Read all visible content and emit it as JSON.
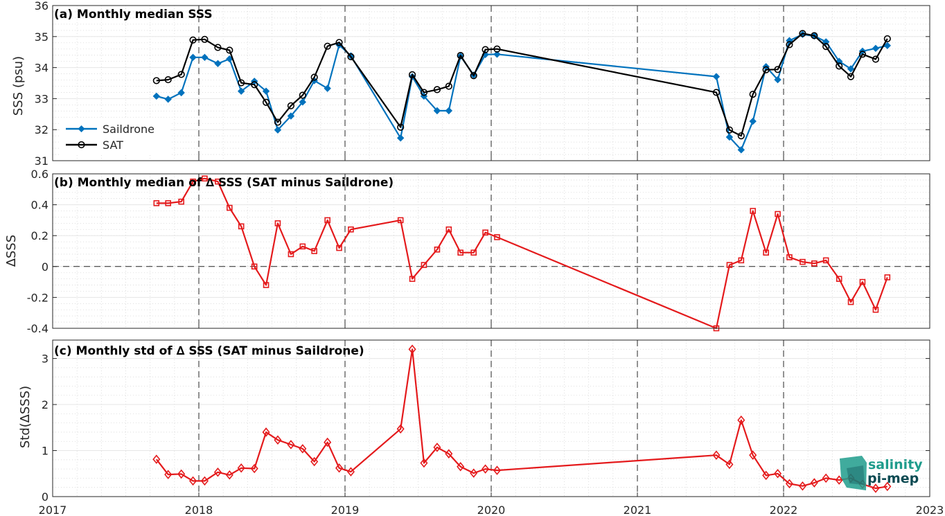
{
  "colors": {
    "saildrone": "#0072BD",
    "sat": "#000000",
    "delta": "#E41A1C",
    "logo_light": "#1f9c8c",
    "logo_dark": "#0c4a52"
  },
  "xaxis": {
    "ticks": [
      2017,
      2018,
      2019,
      2020,
      2021,
      2022,
      2023
    ],
    "labels": [
      "2017",
      "2018",
      "2019",
      "2020",
      "2021",
      "2022",
      "2023"
    ],
    "range": [
      2017,
      2023
    ]
  },
  "logo": {
    "line1": "salinity",
    "line2": "pi-mep"
  },
  "chart_data": [
    {
      "type": "line",
      "title": "(a) Monthly median SSS",
      "ylabel": "SSS (psu)",
      "ylim": [
        31,
        36
      ],
      "yticks": [
        31,
        32,
        33,
        34,
        35,
        36
      ],
      "ytick_labels": [
        "31",
        "32",
        "33",
        "34",
        "35",
        "36"
      ],
      "grid": true,
      "legend_position": "lower-left",
      "series": [
        {
          "name": "Saildrone",
          "marker": "diamond-filled",
          "points": [
            [
              2017.71,
              33.08
            ],
            [
              2017.79,
              32.98
            ],
            [
              2017.88,
              33.19
            ],
            [
              2017.96,
              34.33
            ],
            [
              2018.04,
              34.33
            ],
            [
              2018.13,
              34.13
            ],
            [
              2018.21,
              34.28
            ],
            [
              2018.29,
              33.24
            ],
            [
              2018.38,
              33.56
            ],
            [
              2018.46,
              33.24
            ],
            [
              2018.54,
              31.99
            ],
            [
              2018.63,
              32.44
            ],
            [
              2018.71,
              32.89
            ],
            [
              2018.79,
              33.58
            ],
            [
              2018.88,
              33.33
            ],
            [
              2018.96,
              34.73
            ],
            [
              2019.04,
              34.38
            ],
            [
              2019.38,
              31.73
            ],
            [
              2019.46,
              33.71
            ],
            [
              2019.54,
              33.08
            ],
            [
              2019.63,
              32.61
            ],
            [
              2019.71,
              32.61
            ],
            [
              2019.79,
              34.37
            ],
            [
              2019.88,
              33.76
            ],
            [
              2019.96,
              34.42
            ],
            [
              2020.04,
              34.43
            ],
            [
              2021.54,
              33.71
            ],
            [
              2021.63,
              31.76
            ],
            [
              2021.71,
              31.35
            ],
            [
              2021.79,
              32.27
            ],
            [
              2021.88,
              34.03
            ],
            [
              2021.96,
              33.61
            ],
            [
              2022.04,
              34.87
            ],
            [
              2022.13,
              35.07
            ],
            [
              2022.21,
              35.02
            ],
            [
              2022.29,
              34.83
            ],
            [
              2022.38,
              34.2
            ],
            [
              2022.46,
              33.96
            ],
            [
              2022.54,
              34.53
            ],
            [
              2022.63,
              34.62
            ],
            [
              2022.71,
              34.71
            ]
          ]
        },
        {
          "name": "SAT",
          "marker": "circle-open",
          "points": [
            [
              2017.71,
              33.58
            ],
            [
              2017.79,
              33.61
            ],
            [
              2017.88,
              33.78
            ],
            [
              2017.96,
              34.89
            ],
            [
              2018.04,
              34.91
            ],
            [
              2018.13,
              34.65
            ],
            [
              2018.21,
              34.56
            ],
            [
              2018.29,
              33.51
            ],
            [
              2018.38,
              33.45
            ],
            [
              2018.46,
              32.88
            ],
            [
              2018.54,
              32.24
            ],
            [
              2018.63,
              32.77
            ],
            [
              2018.71,
              33.11
            ],
            [
              2018.79,
              33.69
            ],
            [
              2018.88,
              34.69
            ],
            [
              2018.96,
              34.81
            ],
            [
              2019.04,
              34.35
            ],
            [
              2019.38,
              32.08
            ],
            [
              2019.46,
              33.77
            ],
            [
              2019.54,
              33.2
            ],
            [
              2019.63,
              33.29
            ],
            [
              2019.71,
              33.4
            ],
            [
              2019.79,
              34.39
            ],
            [
              2019.88,
              33.74
            ],
            [
              2019.96,
              34.58
            ],
            [
              2020.04,
              34.6
            ],
            [
              2021.54,
              33.2
            ],
            [
              2021.63,
              31.99
            ],
            [
              2021.71,
              31.8
            ],
            [
              2021.79,
              33.14
            ],
            [
              2021.88,
              33.93
            ],
            [
              2021.96,
              33.94
            ],
            [
              2022.04,
              34.74
            ],
            [
              2022.13,
              35.1
            ],
            [
              2022.21,
              35.03
            ],
            [
              2022.29,
              34.68
            ],
            [
              2022.38,
              34.05
            ],
            [
              2022.46,
              33.71
            ],
            [
              2022.54,
              34.43
            ],
            [
              2022.63,
              34.27
            ],
            [
              2022.71,
              34.93
            ]
          ]
        }
      ]
    },
    {
      "type": "line",
      "title": "(b) Monthly median of ∆ SSS (SAT minus Saildrone)",
      "ylabel": "∆SSS",
      "ylim": [
        -0.4,
        0.6
      ],
      "yticks": [
        -0.4,
        -0.2,
        0,
        0.2,
        0.4,
        0.6
      ],
      "ytick_labels": [
        "-0.4",
        "-0.2",
        "0",
        "0.2",
        "0.4",
        "0.6"
      ],
      "grid": true,
      "zero_line": true,
      "series": [
        {
          "name": "",
          "marker": "square-open",
          "points": [
            [
              2017.71,
              0.41
            ],
            [
              2017.79,
              0.41
            ],
            [
              2017.88,
              0.42
            ],
            [
              2017.96,
              0.55
            ],
            [
              2018.04,
              0.57
            ],
            [
              2018.13,
              0.55
            ],
            [
              2018.21,
              0.38
            ],
            [
              2018.29,
              0.26
            ],
            [
              2018.38,
              0.0
            ],
            [
              2018.46,
              -0.12
            ],
            [
              2018.54,
              0.28
            ],
            [
              2018.63,
              0.08
            ],
            [
              2018.71,
              0.13
            ],
            [
              2018.79,
              0.1
            ],
            [
              2018.88,
              0.3
            ],
            [
              2018.96,
              0.12
            ],
            [
              2019.04,
              0.24
            ],
            [
              2019.38,
              0.3
            ],
            [
              2019.46,
              -0.08
            ],
            [
              2019.54,
              0.01
            ],
            [
              2019.63,
              0.11
            ],
            [
              2019.71,
              0.24
            ],
            [
              2019.79,
              0.09
            ],
            [
              2019.88,
              0.09
            ],
            [
              2019.96,
              0.22
            ],
            [
              2020.04,
              0.19
            ],
            [
              2021.54,
              -0.4
            ],
            [
              2021.63,
              0.01
            ],
            [
              2021.71,
              0.04
            ],
            [
              2021.79,
              0.36
            ],
            [
              2021.88,
              0.09
            ],
            [
              2021.96,
              0.34
            ],
            [
              2022.04,
              0.06
            ],
            [
              2022.13,
              0.03
            ],
            [
              2022.21,
              0.02
            ],
            [
              2022.29,
              0.04
            ],
            [
              2022.38,
              -0.08
            ],
            [
              2022.46,
              -0.23
            ],
            [
              2022.54,
              -0.1
            ],
            [
              2022.63,
              -0.28
            ],
            [
              2022.71,
              -0.07
            ]
          ]
        }
      ]
    },
    {
      "type": "line",
      "title": "(c) Monthly std of ∆ SSS (SAT minus Saildrone)",
      "ylabel": "Std(∆SSS)",
      "ylim": [
        0,
        3.4
      ],
      "yticks": [
        0,
        1,
        2,
        3
      ],
      "ytick_labels": [
        "0",
        "1",
        "2",
        "3"
      ],
      "grid": true,
      "series": [
        {
          "name": "",
          "marker": "diamond-open",
          "points": [
            [
              2017.71,
              0.81
            ],
            [
              2017.79,
              0.48
            ],
            [
              2017.88,
              0.49
            ],
            [
              2017.96,
              0.34
            ],
            [
              2018.04,
              0.34
            ],
            [
              2018.13,
              0.53
            ],
            [
              2018.21,
              0.47
            ],
            [
              2018.29,
              0.62
            ],
            [
              2018.38,
              0.61
            ],
            [
              2018.46,
              1.4
            ],
            [
              2018.54,
              1.23
            ],
            [
              2018.63,
              1.13
            ],
            [
              2018.71,
              1.04
            ],
            [
              2018.79,
              0.76
            ],
            [
              2018.88,
              1.18
            ],
            [
              2018.96,
              0.62
            ],
            [
              2019.04,
              0.54
            ],
            [
              2019.38,
              1.47
            ],
            [
              2019.46,
              3.2
            ],
            [
              2019.54,
              0.73
            ],
            [
              2019.63,
              1.07
            ],
            [
              2019.71,
              0.93
            ],
            [
              2019.79,
              0.65
            ],
            [
              2019.88,
              0.51
            ],
            [
              2019.96,
              0.6
            ],
            [
              2020.04,
              0.57
            ],
            [
              2021.54,
              0.9
            ],
            [
              2021.63,
              0.7
            ],
            [
              2021.71,
              1.66
            ],
            [
              2021.79,
              0.9
            ],
            [
              2021.88,
              0.46
            ],
            [
              2021.96,
              0.5
            ],
            [
              2022.04,
              0.28
            ],
            [
              2022.13,
              0.23
            ],
            [
              2022.21,
              0.3
            ],
            [
              2022.29,
              0.4
            ],
            [
              2022.38,
              0.36
            ],
            [
              2022.46,
              0.4
            ],
            [
              2022.54,
              0.27
            ],
            [
              2022.63,
              0.18
            ],
            [
              2022.71,
              0.22
            ]
          ]
        }
      ]
    }
  ]
}
